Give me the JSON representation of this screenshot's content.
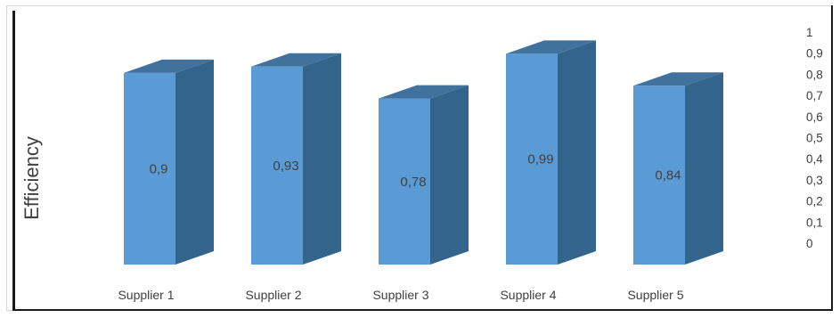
{
  "chart_data": {
    "type": "bar",
    "categories": [
      "Supplier 1",
      "Supplier 2",
      "Supplier 3",
      "Supplier 4",
      "Supplier 5"
    ],
    "values": [
      0.9,
      0.93,
      0.78,
      0.99,
      0.84
    ],
    "data_labels": [
      "0,9",
      "0,93",
      "0,78",
      "0,99",
      "0,84"
    ],
    "ylabel": "Efficiency",
    "y_ticks": [
      "0",
      "0,1",
      "0,2",
      "0,3",
      "0,4",
      "0,5",
      "0,6",
      "0,7",
      "0,8",
      "0,9",
      "1"
    ],
    "ylim": [
      0,
      1
    ],
    "y_axis_side": "right",
    "style": "3d-column",
    "colors": {
      "front": "#5b9bd5",
      "side": "#33648b",
      "top": "#41729e"
    }
  }
}
